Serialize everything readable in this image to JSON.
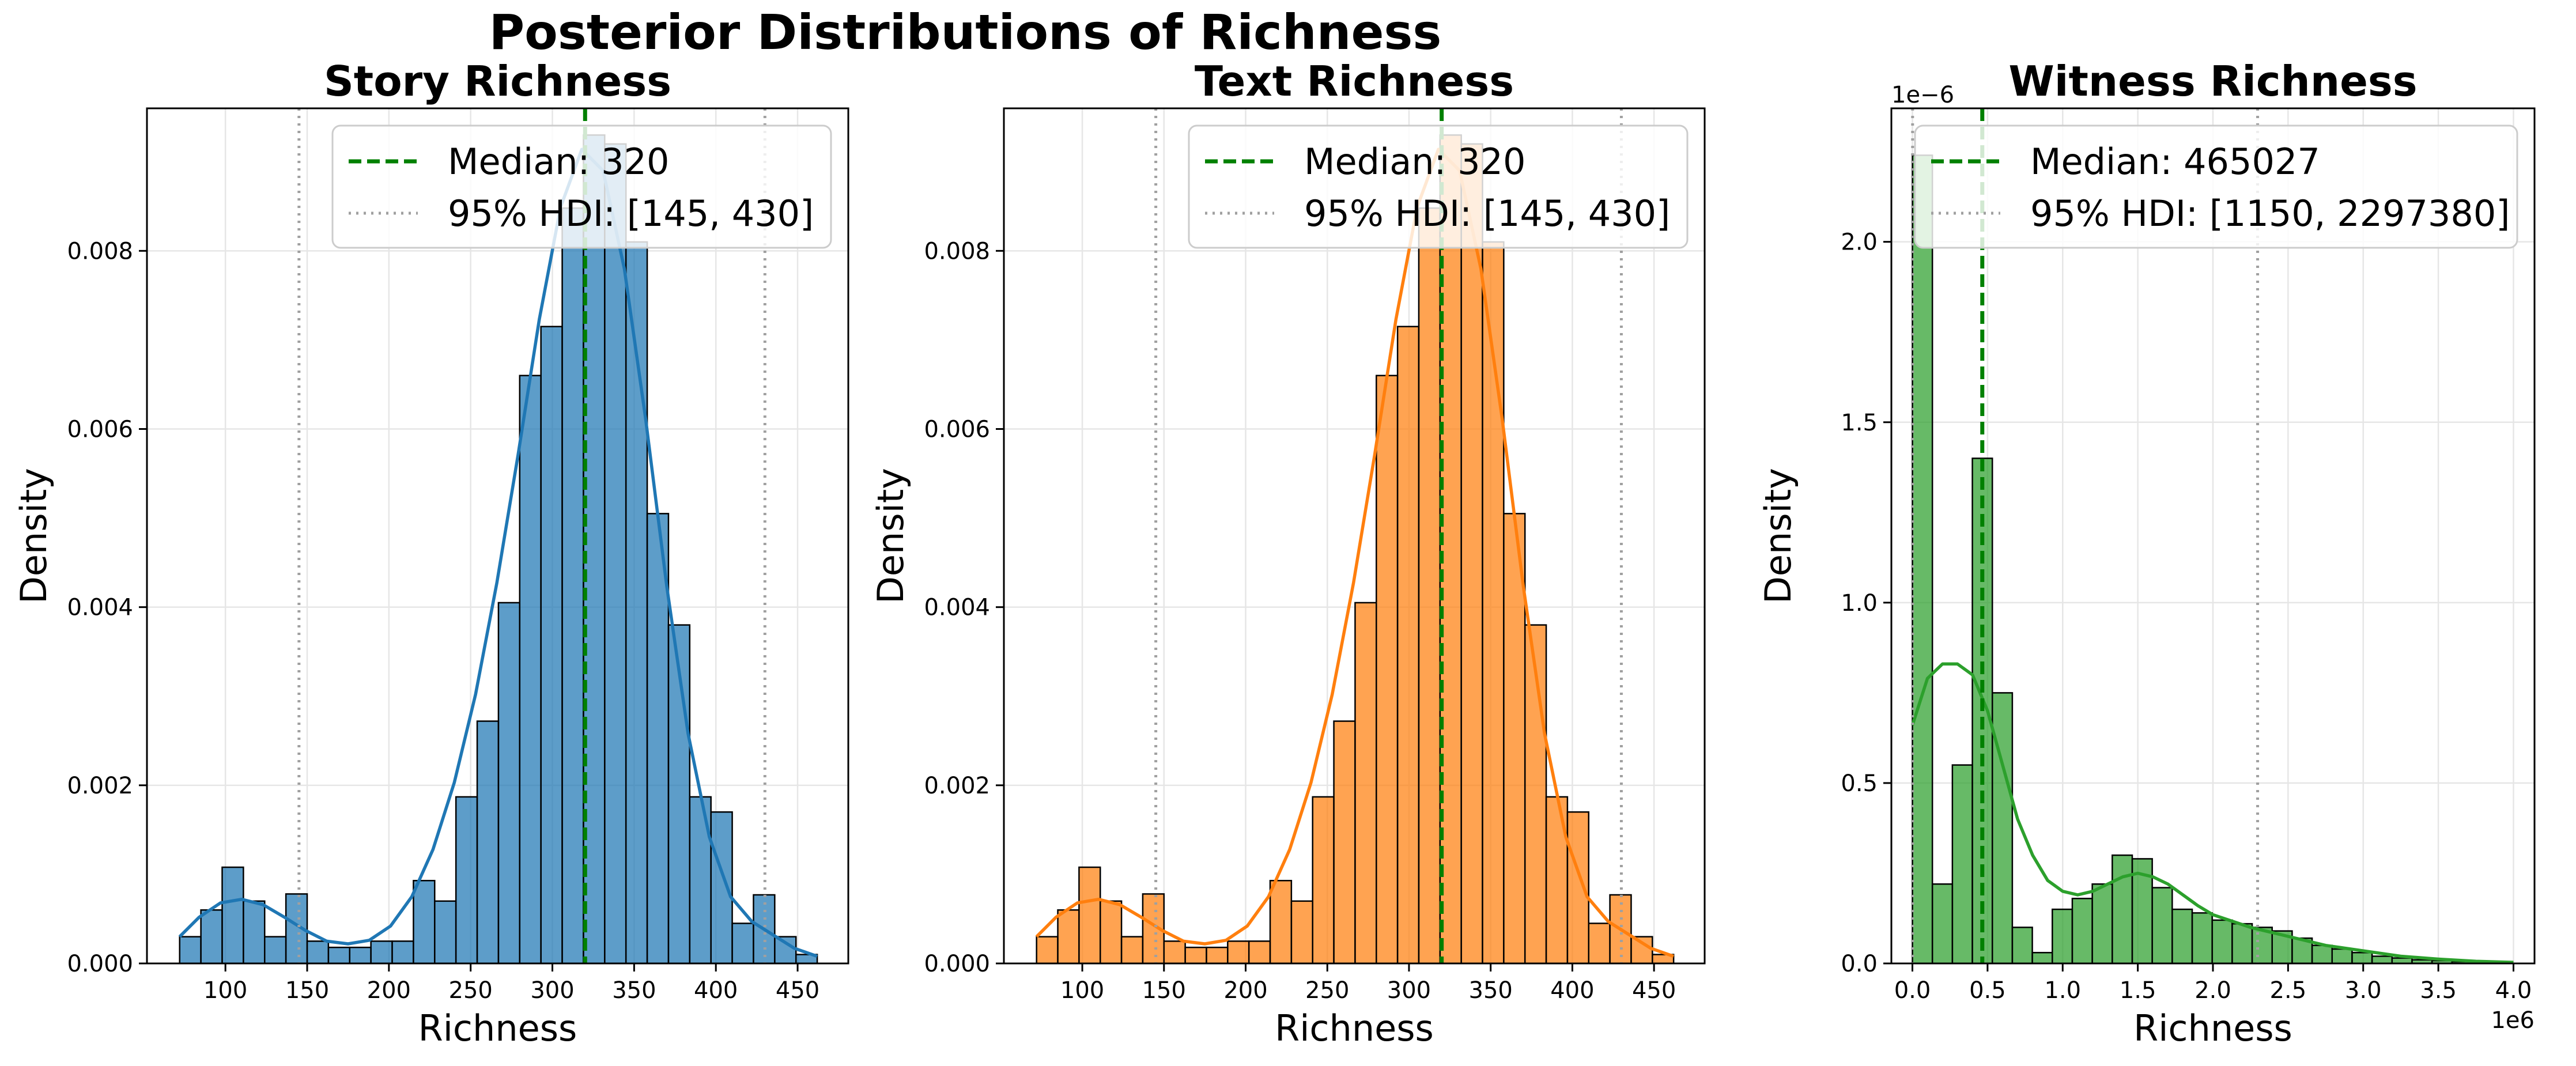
{
  "figure": {
    "suptitle": "Posterior Distributions of Richness"
  },
  "chart_data": [
    {
      "type": "bar",
      "title": "Story Richness",
      "xlabel": "Richness",
      "ylabel": "Density",
      "xlim": [
        52,
        481
      ],
      "ylim": [
        0,
        0.0096
      ],
      "xticks": [
        100,
        150,
        200,
        250,
        300,
        350,
        400,
        450
      ],
      "xtick_labels": [
        "100",
        "150",
        "200",
        "250",
        "300",
        "350",
        "400",
        "450"
      ],
      "yticks": [
        0,
        0.002,
        0.004,
        0.006,
        0.008
      ],
      "ytick_labels": [
        "0.000",
        "0.002",
        "0.004",
        "0.006",
        "0.008"
      ],
      "grid": true,
      "color": "#1f77b4",
      "bin_edges": [
        72,
        85,
        98,
        111,
        124,
        137,
        150,
        163,
        176,
        189,
        202,
        215,
        228,
        241,
        254,
        267,
        280,
        293,
        306,
        319,
        332,
        345,
        358,
        371,
        384,
        397,
        410,
        423,
        436,
        449,
        462
      ],
      "densities": [
        0.0003,
        0.0006,
        0.00108,
        0.0007,
        0.0003,
        0.00078,
        0.00025,
        0.00018,
        0.00018,
        0.00025,
        0.00025,
        0.00093,
        0.0007,
        0.00187,
        0.00272,
        0.00405,
        0.0066,
        0.00715,
        0.00848,
        0.0093,
        0.0092,
        0.0081,
        0.00505,
        0.0038,
        0.00187,
        0.0017,
        0.00045,
        0.00077,
        0.0003,
        0.0001
      ],
      "kde": {
        "x": [
          72,
          84,
          97,
          110,
          123,
          136,
          149,
          162,
          175,
          188,
          201,
          214,
          227,
          240,
          253,
          266,
          279,
          292,
          305,
          318,
          331,
          344,
          357,
          370,
          383,
          396,
          409,
          422,
          435,
          448,
          462
        ],
        "y": [
          0.0003,
          0.00052,
          0.00068,
          0.00072,
          0.00066,
          0.00052,
          0.00037,
          0.00025,
          0.00022,
          0.00026,
          0.00042,
          0.00075,
          0.00128,
          0.00203,
          0.00302,
          0.00427,
          0.00571,
          0.00723,
          0.00849,
          0.00914,
          0.0089,
          0.0078,
          0.00612,
          0.00423,
          0.00258,
          0.00142,
          0.00075,
          0.00047,
          0.00032,
          0.00017,
          8e-05
        ]
      },
      "median": 320,
      "hdi": [
        145,
        430
      ],
      "legend": {
        "position": "upper right",
        "entries": [
          "Median: 320",
          "95% HDI: [145, 430]"
        ]
      }
    },
    {
      "type": "bar",
      "title": "Text Richness",
      "xlabel": "Richness",
      "ylabel": "Density",
      "xlim": [
        52,
        481
      ],
      "ylim": [
        0,
        0.0096
      ],
      "xticks": [
        100,
        150,
        200,
        250,
        300,
        350,
        400,
        450
      ],
      "xtick_labels": [
        "100",
        "150",
        "200",
        "250",
        "300",
        "350",
        "400",
        "450"
      ],
      "yticks": [
        0,
        0.002,
        0.004,
        0.006,
        0.008
      ],
      "ytick_labels": [
        "0.000",
        "0.002",
        "0.004",
        "0.006",
        "0.008"
      ],
      "grid": true,
      "color": "#ff7f0e",
      "bin_edges": [
        72,
        85,
        98,
        111,
        124,
        137,
        150,
        163,
        176,
        189,
        202,
        215,
        228,
        241,
        254,
        267,
        280,
        293,
        306,
        319,
        332,
        345,
        358,
        371,
        384,
        397,
        410,
        423,
        436,
        449,
        462
      ],
      "densities": [
        0.0003,
        0.0006,
        0.00108,
        0.0007,
        0.0003,
        0.00078,
        0.00025,
        0.00018,
        0.00018,
        0.00025,
        0.00025,
        0.00093,
        0.0007,
        0.00187,
        0.00272,
        0.00405,
        0.0066,
        0.00715,
        0.00848,
        0.0093,
        0.0092,
        0.0081,
        0.00505,
        0.0038,
        0.00187,
        0.0017,
        0.00045,
        0.00077,
        0.0003,
        0.0001
      ],
      "kde": {
        "x": [
          72,
          84,
          97,
          110,
          123,
          136,
          149,
          162,
          175,
          188,
          201,
          214,
          227,
          240,
          253,
          266,
          279,
          292,
          305,
          318,
          331,
          344,
          357,
          370,
          383,
          396,
          409,
          422,
          435,
          448,
          462
        ],
        "y": [
          0.0003,
          0.00052,
          0.00068,
          0.00072,
          0.00066,
          0.00052,
          0.00037,
          0.00025,
          0.00022,
          0.00026,
          0.00042,
          0.00075,
          0.00128,
          0.00203,
          0.00302,
          0.00427,
          0.00571,
          0.00723,
          0.00849,
          0.00914,
          0.0089,
          0.0078,
          0.00612,
          0.00423,
          0.00258,
          0.00142,
          0.00075,
          0.00047,
          0.00032,
          0.00017,
          8e-05
        ]
      },
      "median": 320,
      "hdi": [
        145,
        430
      ],
      "legend": {
        "position": "upper right",
        "entries": [
          "Median: 320",
          "95% HDI: [145, 430]"
        ]
      }
    },
    {
      "type": "bar",
      "title": "Witness Richness",
      "xlabel": "Richness",
      "ylabel": "Density",
      "xlim": [
        -140000,
        4140000
      ],
      "ylim": [
        0,
        2.37e-06
      ],
      "x_offset_label": "1e6",
      "y_offset_label": "1e−6",
      "xticks": [
        0,
        500000,
        1000000,
        1500000,
        2000000,
        2500000,
        3000000,
        3500000,
        4000000
      ],
      "xtick_labels": [
        "0.0",
        "0.5",
        "1.0",
        "1.5",
        "2.0",
        "2.5",
        "3.0",
        "3.5",
        "4.0"
      ],
      "yticks": [
        0,
        5e-07,
        1e-06,
        1.5e-06,
        2e-06
      ],
      "ytick_labels": [
        "0.0",
        "0.5",
        "1.0",
        "1.5",
        "2.0"
      ],
      "grid": true,
      "color": "#2ca02c",
      "bin_edges": [
        0,
        133000,
        266000,
        399000,
        532000,
        665000,
        798000,
        931000,
        1064000,
        1197000,
        1330000,
        1463000,
        1596000,
        1729000,
        1862000,
        1995000,
        2128000,
        2261000,
        2394000,
        2527000,
        2660000,
        2793000,
        2926000,
        3059000,
        3192000,
        3325000,
        3458000,
        3591000,
        3724000,
        3857000,
        3990000
      ],
      "densities": [
        2.24e-06,
        2.2e-07,
        5.5e-07,
        1.4e-06,
        7.5e-07,
        1e-07,
        3e-08,
        1.5e-07,
        1.8e-07,
        2.2e-07,
        3e-07,
        2.9e-07,
        2.1e-07,
        1.5e-07,
        1.4e-07,
        1.2e-07,
        1.1e-07,
        1e-07,
        9e-08,
        7e-08,
        5e-08,
        4e-08,
        3e-08,
        2e-08,
        1.5e-08,
        1e-08,
        8e-09,
        5e-09,
        4e-09,
        3e-09
      ],
      "kde": {
        "x": [
          0,
          100000,
          200000,
          300000,
          400000,
          500000,
          600000,
          700000,
          800000,
          900000,
          1000000,
          1100000,
          1200000,
          1300000,
          1400000,
          1500000,
          1600000,
          1700000,
          1800000,
          1900000,
          2000000,
          2250000,
          2500000,
          2750000,
          3000000,
          3250000,
          3500000,
          3750000,
          4000000
        ],
        "y": [
          6.6e-07,
          7.9e-07,
          8.3e-07,
          8.3e-07,
          8e-07,
          7e-07,
          5.5e-07,
          4e-07,
          3e-07,
          2.3e-07,
          2e-07,
          1.9e-07,
          2e-07,
          2.2e-07,
          2.4e-07,
          2.5e-07,
          2.4e-07,
          2.2e-07,
          1.9e-07,
          1.6e-07,
          1.35e-07,
          1e-07,
          7.5e-08,
          5e-08,
          3.5e-08,
          2e-08,
          1.2e-08,
          6e-09,
          3e-09
        ]
      },
      "median": 465027,
      "hdi": [
        1150,
        2297380
      ],
      "legend": {
        "position": "upper right",
        "entries": [
          "Median: 465027",
          "95% HDI: [1150, 2297380]"
        ]
      }
    }
  ],
  "style": {
    "median_color": "#008000",
    "hdi_color": "#a0a0a0",
    "grid_color": "#e6e6e6"
  }
}
